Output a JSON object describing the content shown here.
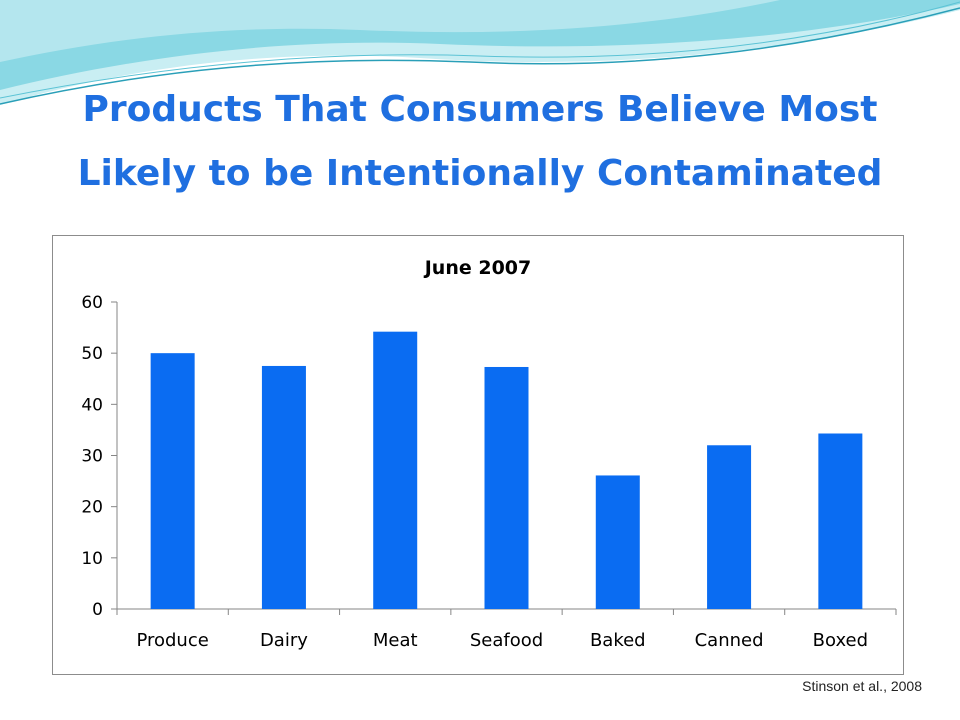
{
  "slide": {
    "title": "Products That Consumers Believe Most Likely to be Intentionally Contaminated",
    "citation": "Stinson et al., 2008"
  },
  "colors": {
    "title": "#1f6fe0",
    "bar": "#0a6cf2",
    "wave_teal": "#7fd3e0",
    "wave_light": "#c9eef3"
  },
  "chart_data": {
    "type": "bar",
    "title": "June 2007",
    "xlabel": "",
    "ylabel": "",
    "categories": [
      "Produce",
      "Dairy",
      "Meat",
      "Seafood",
      "Baked",
      "Canned",
      "Boxed"
    ],
    "values": [
      50,
      47.5,
      54.2,
      47.3,
      26.1,
      32,
      34.3
    ],
    "ylim": [
      0,
      60
    ],
    "yticks": [
      0,
      10,
      20,
      30,
      40,
      50,
      60
    ],
    "grid": false,
    "legend": "none"
  }
}
